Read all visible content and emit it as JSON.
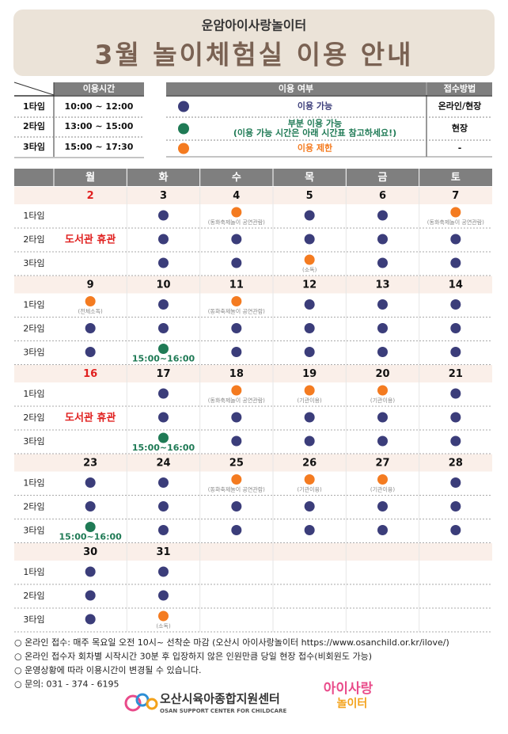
{
  "header": {
    "subtitle": "운암아이사랑놀이터",
    "title": "3월 놀이체험실 이용 안내"
  },
  "colors": {
    "available": "#3b3d7a",
    "partial": "#1f7a55",
    "restricted": "#f47b20",
    "closed": "#e0201f"
  },
  "time_table": {
    "header": "이용시간",
    "rows": [
      [
        "1타임",
        "10:00 ~ 12:00"
      ],
      [
        "2타임",
        "13:00 ~ 15:00"
      ],
      [
        "3타임",
        "15:00 ~ 17:30"
      ]
    ]
  },
  "legend": {
    "headers": [
      "이용 여부",
      "접수방법"
    ],
    "rows": [
      {
        "status": "available",
        "label": [
          "이용 가능"
        ],
        "method": "온라인/현장"
      },
      {
        "status": "partial",
        "label": [
          "부분 이용 가능",
          "(이용 가능 시간은 아래 시간표 참고하세요!)"
        ],
        "method": "현장"
      },
      {
        "status": "restricted",
        "label": [
          "이용 제한"
        ],
        "method": "-"
      }
    ]
  },
  "calendar": {
    "days": [
      "월",
      "화",
      "수",
      "목",
      "금",
      "토"
    ],
    "row_labels": [
      "1타임",
      "2타임",
      "3타임"
    ],
    "weeks": [
      {
        "dates": [
          "2",
          "3",
          "4",
          "5",
          "6",
          "7"
        ],
        "rows": [
          [
            {
              "status": "closed"
            },
            {
              "status": "available"
            },
            {
              "status": "restricted",
              "note": "(동화축제놀이 공연관람)"
            },
            {
              "status": "available"
            },
            {
              "status": "available"
            },
            {
              "status": "restricted",
              "note": "(동화축제놀이 공연관람)"
            }
          ],
          [
            {
              "status": "closed",
              "note": "도서관 휴관"
            },
            {
              "status": "available"
            },
            {
              "status": "available"
            },
            {
              "status": "available"
            },
            {
              "status": "available"
            },
            {
              "status": "available"
            }
          ],
          [
            {
              "status": "closed"
            },
            {
              "status": "available"
            },
            {
              "status": "available"
            },
            {
              "status": "restricted",
              "note": "(소독)"
            },
            {
              "status": "available"
            },
            {
              "status": "available"
            }
          ]
        ]
      },
      {
        "dates": [
          "9",
          "10",
          "11",
          "12",
          "13",
          "14"
        ],
        "rows": [
          [
            {
              "status": "restricted",
              "note": "(전체소독)"
            },
            {
              "status": "available"
            },
            {
              "status": "restricted",
              "note": "(동화축제놀이 공연관람)"
            },
            {
              "status": "available"
            },
            {
              "status": "available"
            },
            {
              "status": "available"
            }
          ],
          [
            {
              "status": "available"
            },
            {
              "status": "available"
            },
            {
              "status": "available"
            },
            {
              "status": "available"
            },
            {
              "status": "available"
            },
            {
              "status": "available"
            }
          ],
          [
            {
              "status": "available"
            },
            {
              "status": "partial",
              "note": "15:00~16:00"
            },
            {
              "status": "available"
            },
            {
              "status": "available"
            },
            {
              "status": "available"
            },
            {
              "status": "available"
            }
          ]
        ]
      },
      {
        "dates": [
          "16",
          "17",
          "18",
          "19",
          "20",
          "21"
        ],
        "rows": [
          [
            {
              "status": "closed"
            },
            {
              "status": "available"
            },
            {
              "status": "restricted",
              "note": "(동화축제놀이 공연관람)"
            },
            {
              "status": "restricted",
              "note": "(기관이용)"
            },
            {
              "status": "restricted",
              "note": "(기관이용)"
            },
            {
              "status": "available"
            }
          ],
          [
            {
              "status": "closed",
              "note": "도서관 휴관"
            },
            {
              "status": "available"
            },
            {
              "status": "available"
            },
            {
              "status": "available"
            },
            {
              "status": "available"
            },
            {
              "status": "available"
            }
          ],
          [
            {
              "status": "closed"
            },
            {
              "status": "partial",
              "note": "15:00~16:00"
            },
            {
              "status": "available"
            },
            {
              "status": "available"
            },
            {
              "status": "available"
            },
            {
              "status": "available"
            }
          ]
        ]
      },
      {
        "dates": [
          "23",
          "24",
          "25",
          "26",
          "27",
          "28"
        ],
        "rows": [
          [
            {
              "status": "available"
            },
            {
              "status": "available"
            },
            {
              "status": "restricted",
              "note": "(동화축제놀이 공연관람)"
            },
            {
              "status": "restricted",
              "note": "(기관이용)"
            },
            {
              "status": "restricted",
              "note": "(기관이용)"
            },
            {
              "status": "available"
            }
          ],
          [
            {
              "status": "available"
            },
            {
              "status": "available"
            },
            {
              "status": "available"
            },
            {
              "status": "available"
            },
            {
              "status": "available"
            },
            {
              "status": "available"
            }
          ],
          [
            {
              "status": "partial",
              "note": "15:00~16:00"
            },
            {
              "status": "available"
            },
            {
              "status": "available"
            },
            {
              "status": "available"
            },
            {
              "status": "available"
            },
            {
              "status": "available"
            }
          ]
        ]
      },
      {
        "dates": [
          "30",
          "31",
          null,
          null,
          null,
          null
        ],
        "rows": [
          [
            {
              "status": "available"
            },
            {
              "status": "available"
            },
            null,
            null,
            null,
            null
          ],
          [
            {
              "status": "available"
            },
            {
              "status": "available"
            },
            null,
            null,
            null,
            null
          ],
          [
            {
              "status": "available"
            },
            {
              "status": "restricted",
              "note": "(소독)"
            },
            null,
            null,
            null,
            null
          ]
        ]
      }
    ]
  },
  "footer": {
    "notes": [
      "○ 온라인 접수: 매주 목요일 오전 10시~ 선착순 마감 (오산시 아이사랑놀이터 https://www.osanchild.or.kr/ilove/)",
      "○ 온라인 접수자 회차별 시작시간 30분 후 입장하지 않은 인원만큼 당일 현장 접수(비회원도 가능)",
      "○ 운영상황에 따라 이용시간이 변경될 수 있습니다.",
      "○ 문의: 031 - 374 - 6195"
    ],
    "logo_name": "오산시육아종합지원센터",
    "logo_english": "OSAN SUPPORT CENTER FOR CHILDCARE",
    "brand_top": "아이사랑",
    "brand_bottom": "놀이터"
  }
}
